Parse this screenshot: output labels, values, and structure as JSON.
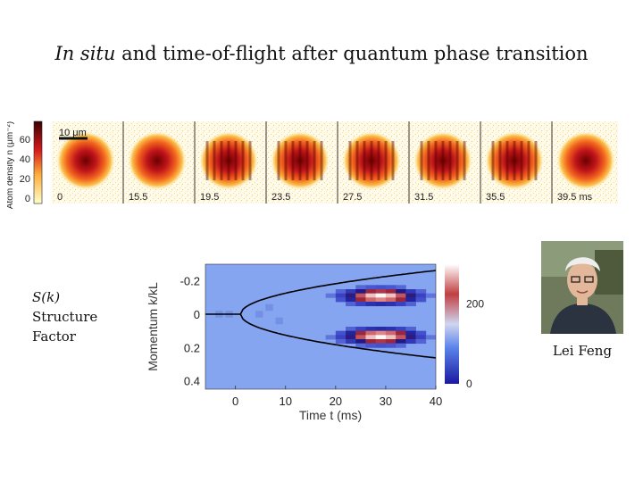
{
  "slide": {
    "title_italic": "In situ",
    "title_rest": " and time-of-flight after quantum phase transition"
  },
  "density_strip": {
    "colorbar_label": "Atom density n (μm⁻²)",
    "colorbar_ticks": [
      "60",
      "40",
      "20",
      "0"
    ],
    "scale_bar_label": "10 μm",
    "frame_labels": [
      "0",
      "15.5",
      "19.5",
      "23.5",
      "27.5",
      "31.5",
      "35.5",
      "39.5 ms"
    ]
  },
  "structure_factor": {
    "symbol": "S(k)",
    "label_line1": "Structure",
    "label_line2": "Factor"
  },
  "person": {
    "name": "Lei Feng"
  },
  "chart_data": {
    "type": "heatmap",
    "title": "",
    "xlabel": "Time t (ms)",
    "ylabel": "Momentum k/kL",
    "xlim": [
      -6,
      40
    ],
    "ylim": [
      -0.3,
      0.45
    ],
    "x_ticks": [
      0,
      10,
      20,
      30,
      40
    ],
    "x_tick_labels": [
      "0",
      "10",
      "20",
      "30",
      "40"
    ],
    "y_ticks": [
      -0.2,
      0,
      0.2,
      0.4
    ],
    "y_tick_labels": [
      "-0.2",
      "0",
      "0.2",
      "0.4"
    ],
    "colorbar": {
      "min": 0,
      "max": 300,
      "ticks": [
        0,
        200
      ],
      "tick_labels": [
        "0",
        "200"
      ]
    },
    "curve": {
      "description": "k = ±0.042·√(t − 1) boundary",
      "k_scale": 0.042,
      "t0": 1
    },
    "peaks": [
      {
        "t": 28,
        "k": -0.12,
        "value": 300
      },
      {
        "t": 28,
        "k": 0.12,
        "value": 300
      }
    ]
  }
}
